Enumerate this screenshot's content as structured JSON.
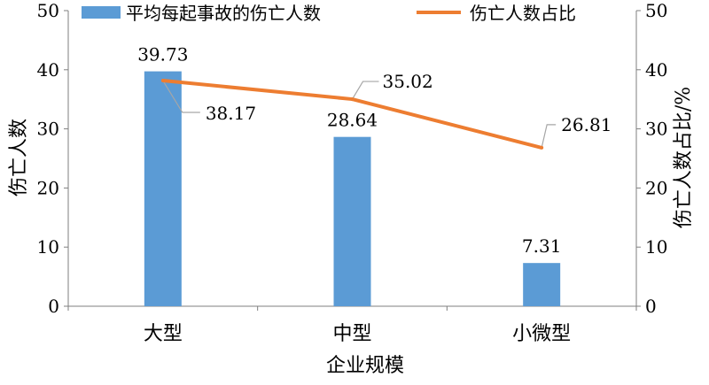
{
  "chart_data": {
    "type": "bar",
    "categories": [
      "大型",
      "中型",
      "小微型"
    ],
    "series": [
      {
        "name": "平均每起事故的伤亡人数",
        "type": "bar",
        "axis": "left",
        "values": [
          39.73,
          28.64,
          7.31
        ],
        "labels": [
          "39.73",
          "28.64",
          "7.31"
        ],
        "color": "#5b9bd5"
      },
      {
        "name": "伤亡人数占比",
        "type": "line",
        "axis": "right",
        "values": [
          38.17,
          35.02,
          26.81
        ],
        "labels": [
          "38.17",
          "35.02",
          "26.81"
        ],
        "color": "#ed7d31"
      }
    ],
    "xlabel": "企业规模",
    "ylabel": "伤亡人数",
    "y2label": "伤亡人数占比/%",
    "ylim": [
      0,
      50
    ],
    "y2lim": [
      0,
      50
    ],
    "yticks": [
      "0",
      "10",
      "20",
      "30",
      "40",
      "50"
    ],
    "y2ticks": [
      "0",
      "10",
      "20",
      "30",
      "40",
      "50"
    ],
    "grid": false,
    "legend_position": "top"
  }
}
